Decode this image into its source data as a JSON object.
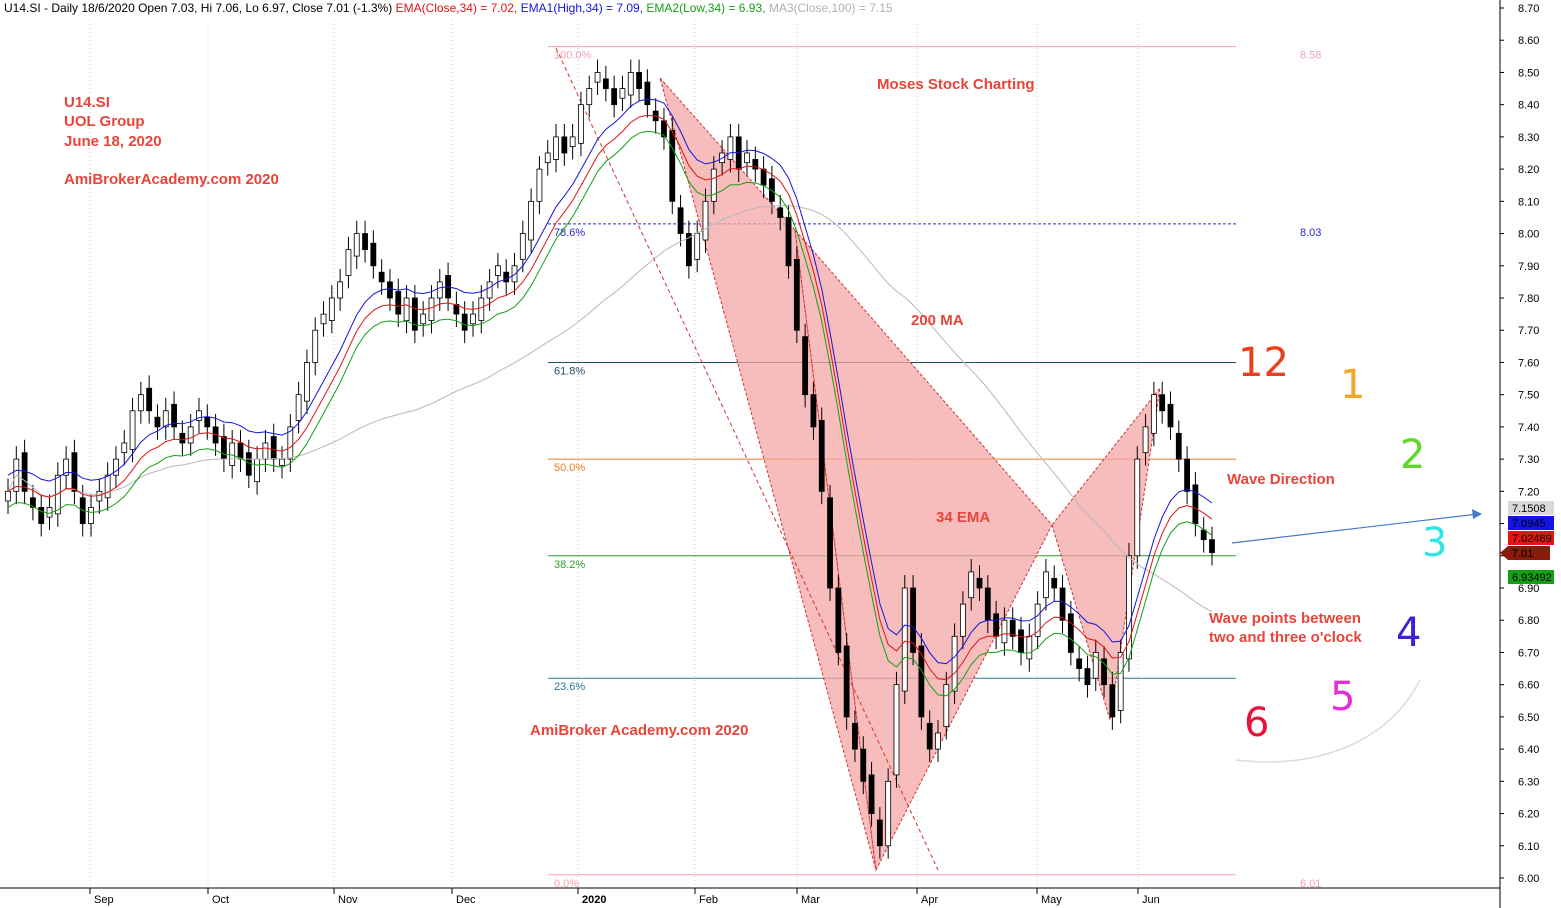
{
  "header": {
    "symbol_info": "U14.SI - Daily 18/6/2020 Open 7.03, Hi 7.06, Lo 6.97, Close 7.01 (-1.3%)",
    "ema_label": "EMA(Close,34) = 7.02,",
    "ema1_label": "EMA1(High,34) = 7.09,",
    "ema2_label": "EMA2(Low,34) = 6.93,",
    "ma3_label": "MA3(Close,100) = 7.15"
  },
  "title_block": {
    "line1": "U14.SI",
    "line2": "UOL Group",
    "line3": "June 18, 2020",
    "watermark_top": "AmiBrokerAcademy.com  2020"
  },
  "annotations": {
    "moses": "Moses Stock Charting",
    "ma200": "200 MA",
    "ema34": "34 EMA",
    "wave_direction": "Wave Direction",
    "wave_points_1": "Wave points between",
    "wave_points_2": "two and three o'clock",
    "watermark_bottom": "AmiBroker Academy.com  2020"
  },
  "clock_numbers": [
    {
      "label": "12",
      "color": "#e8401c"
    },
    {
      "label": "1",
      "color": "#f5a623"
    },
    {
      "label": "2",
      "color": "#5fd62a"
    },
    {
      "label": "3",
      "color": "#2ee6e6"
    },
    {
      "label": "4",
      "color": "#3b24d6"
    },
    {
      "label": "5",
      "color": "#e62ed6"
    },
    {
      "label": "6",
      "color": "#e6143c"
    }
  ],
  "chart_data": {
    "type": "candlestick",
    "y_ticks": [
      "6.00",
      "6.10",
      "6.20",
      "6.30",
      "6.40",
      "6.50",
      "6.60",
      "6.70",
      "6.80",
      "6.90",
      "7.00",
      "7.10",
      "7.20",
      "7.30",
      "7.40",
      "7.50",
      "7.60",
      "7.70",
      "7.80",
      "7.90",
      "8.00",
      "8.10",
      "8.20",
      "8.30",
      "8.40",
      "8.50",
      "8.60",
      "8.70"
    ],
    "ylim": [
      6.0,
      8.7
    ],
    "months": [
      "Sep",
      "Oct",
      "Nov",
      "Dec",
      "2020",
      "Feb",
      "Mar",
      "Apr",
      "May",
      "Jun"
    ],
    "fib_levels": [
      {
        "label": "100.0%",
        "value": 8.58,
        "right": "8.58",
        "color": "#f2a0b0"
      },
      {
        "label": "78.6%",
        "value": 8.03,
        "right": "8.03",
        "color": "#2a2acc"
      },
      {
        "label": "61.8%",
        "value": 7.6,
        "right": "",
        "color": "#1f4f5f"
      },
      {
        "label": "50.0%",
        "value": 7.3,
        "right": "",
        "color": "#f07a2a"
      },
      {
        "label": "38.2%",
        "value": 7.0,
        "right": "",
        "color": "#2a9a2a"
      },
      {
        "label": "23.6%",
        "value": 6.62,
        "right": "",
        "color": "#2a7a9a"
      },
      {
        "label": "0.0%",
        "value": 6.01,
        "right": "6.01",
        "color": "#f2a0b0"
      }
    ],
    "price_tags": [
      {
        "label": "7.1508",
        "value": 7.15,
        "bg": "#d9d9d9",
        "fg": "#000000"
      },
      {
        "label": "7.0945",
        "value": 7.09,
        "bg": "#1414e6",
        "fg": "#ffffff"
      },
      {
        "label": "7.02489",
        "value": 7.02,
        "bg": "#e61414",
        "fg": "#ffffff"
      },
      {
        "label": "7.01",
        "value": 7.0,
        "bg": "#8a1a0a",
        "fg": "#ffffff"
      },
      {
        "label": "6.93492",
        "value": 6.93,
        "bg": "#14a014",
        "fg": "#ffffff"
      }
    ],
    "closes": [
      7.2,
      7.3,
      7.2,
      7.15,
      7.1,
      7.15,
      7.25,
      7.3,
      7.2,
      7.1,
      7.15,
      7.2,
      7.25,
      7.3,
      7.35,
      7.45,
      7.5,
      7.45,
      7.4,
      7.45,
      7.4,
      7.35,
      7.4,
      7.45,
      7.4,
      7.35,
      7.3,
      7.35,
      7.3,
      7.25,
      7.3,
      7.35,
      7.3,
      7.3,
      7.4,
      7.5,
      7.6,
      7.7,
      7.75,
      7.8,
      7.85,
      7.95,
      8.0,
      7.95,
      7.9,
      7.85,
      7.8,
      7.75,
      7.8,
      7.7,
      7.75,
      7.8,
      7.85,
      7.8,
      7.75,
      7.7,
      7.75,
      7.8,
      7.85,
      7.9,
      7.85,
      7.9,
      8.0,
      8.1,
      8.2,
      8.25,
      8.3,
      8.25,
      8.3,
      8.4,
      8.45,
      8.5,
      8.45,
      8.4,
      8.45,
      8.5,
      8.45,
      8.4,
      8.35,
      8.3,
      8.1,
      8.0,
      7.9,
      8.0,
      8.1,
      8.2,
      8.25,
      8.3,
      8.2,
      8.25,
      8.2,
      8.15,
      8.1,
      8.05,
      7.9,
      7.7,
      7.5,
      7.4,
      7.2,
      6.9,
      6.7,
      6.5,
      6.4,
      6.3,
      6.2,
      6.1,
      6.3,
      6.6,
      6.9,
      6.7,
      6.5,
      6.4,
      6.45,
      6.6,
      6.75,
      6.85,
      6.95,
      6.9,
      6.8,
      6.75,
      6.8,
      6.75,
      6.7,
      6.75,
      6.85,
      6.95,
      6.9,
      6.8,
      6.7,
      6.65,
      6.6,
      6.7,
      6.6,
      6.5,
      6.7,
      7.0,
      7.3,
      7.4,
      7.5,
      7.45,
      7.4,
      7.3,
      7.2,
      7.1,
      7.05,
      7.01
    ]
  }
}
